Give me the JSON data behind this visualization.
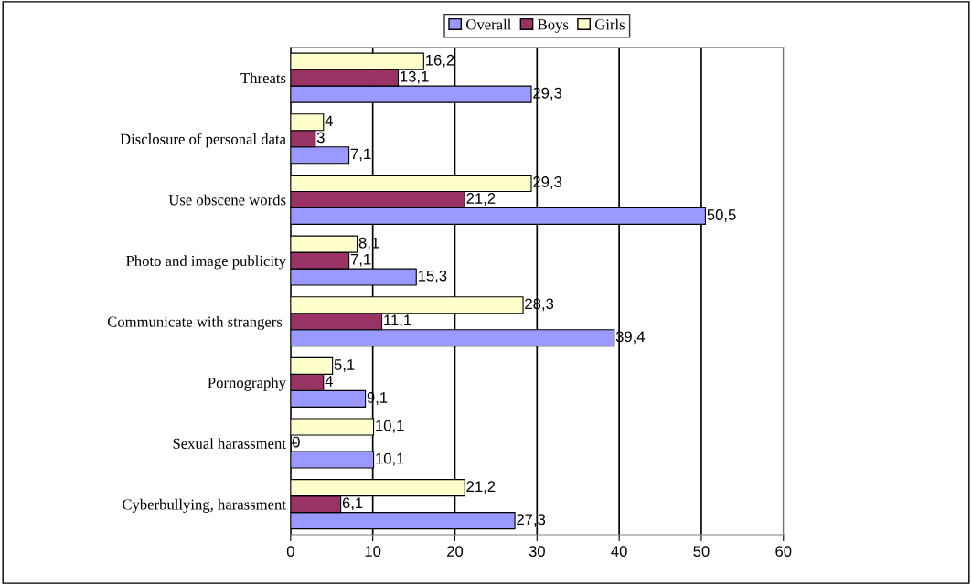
{
  "chart_data": {
    "type": "bar",
    "orientation": "horizontal",
    "categories": [
      "Threats",
      "Disclosure of personal data",
      "Use obscene words",
      "Photo and image publicity",
      "Communicate with strangers ",
      "Pornography",
      "Sexual harassment",
      "Cyberbullying, harassment"
    ],
    "series": [
      {
        "name": "Overall",
        "color": "#9999ff",
        "values": [
          29.3,
          7.1,
          50.5,
          15.3,
          39.4,
          9.1,
          10.1,
          27.3
        ],
        "value_labels": [
          "29,3",
          "7,1",
          "50,5",
          "15,3",
          "39,4",
          "9,1",
          "10,1",
          "27,3"
        ]
      },
      {
        "name": "Boys",
        "color": "#993366",
        "values": [
          13.1,
          3,
          21.2,
          7.1,
          11.1,
          4,
          0,
          6.1
        ],
        "value_labels": [
          "13,1",
          "3",
          "21,2",
          "7,1",
          "11,1",
          "4",
          "0",
          "6,1"
        ]
      },
      {
        "name": "Girls",
        "color": "#ffffcc",
        "values": [
          16.2,
          4,
          29.3,
          8.1,
          28.3,
          5.1,
          10.1,
          21.2
        ],
        "value_labels": [
          "16,2",
          "4",
          "29,3",
          "8,1",
          "28,3",
          "5,1",
          "10,1",
          "21,2"
        ]
      }
    ],
    "xlim": [
      0,
      60
    ],
    "xticks": [
      0,
      10,
      20,
      30,
      40,
      50,
      60
    ],
    "grid": "x",
    "legend": "top"
  }
}
